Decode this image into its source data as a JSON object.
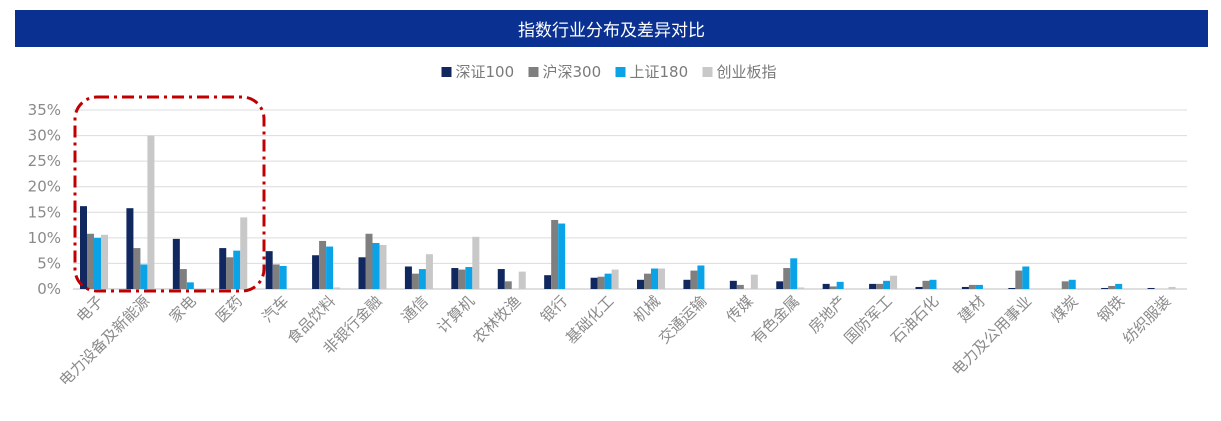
{
  "chart_data": {
    "type": "bar",
    "title": "指数行业分布及差异对比",
    "ylim": [
      0,
      35
    ],
    "yticks": [
      "0%",
      "5%",
      "10%",
      "15%",
      "20%",
      "25%",
      "30%",
      "35%"
    ],
    "legend_position": "top-center",
    "grid": true,
    "categories": [
      "电子",
      "电力设备及新能源",
      "家电",
      "医药",
      "汽车",
      "食品饮料",
      "非银行金融",
      "通信",
      "计算机",
      "农林牧渔",
      "银行",
      "基础化工",
      "机械",
      "交通运输",
      "传媒",
      "有色金属",
      "房地产",
      "国防军工",
      "石油石化",
      "建材",
      "电力及公用事业",
      "煤炭",
      "钢铁",
      "纺织服装"
    ],
    "series": [
      {
        "name": "深证100",
        "color": "#10285f",
        "values": [
          16.2,
          15.8,
          9.8,
          8.0,
          7.4,
          6.6,
          6.2,
          4.4,
          4.1,
          3.9,
          2.7,
          2.2,
          1.8,
          1.8,
          1.6,
          1.5,
          1.0,
          1.0,
          0.4,
          0.4,
          0.2,
          0.0,
          0.2,
          0.2
        ]
      },
      {
        "name": "沪深300",
        "color": "#7f7f7f",
        "values": [
          10.8,
          8.0,
          3.9,
          6.2,
          4.8,
          9.4,
          10.8,
          3.0,
          3.8,
          1.5,
          13.5,
          2.4,
          3.0,
          3.6,
          0.8,
          4.1,
          0.5,
          1.0,
          1.6,
          0.8,
          3.6,
          1.5,
          0.6,
          0.0
        ]
      },
      {
        "name": "上证180",
        "color": "#0aa3e8",
        "values": [
          10.0,
          4.8,
          1.3,
          7.5,
          4.5,
          8.3,
          9.0,
          3.9,
          4.3,
          0.0,
          12.8,
          3.0,
          4.0,
          4.6,
          0.0,
          6.0,
          1.4,
          1.6,
          1.8,
          0.8,
          4.4,
          1.8,
          1.0,
          0.0
        ]
      },
      {
        "name": "创业板指",
        "color": "#c8c8c8",
        "values": [
          10.6,
          30.0,
          0.0,
          14.0,
          0.0,
          0.3,
          8.6,
          6.8,
          10.2,
          3.4,
          0.0,
          3.8,
          4.0,
          0.0,
          2.8,
          0.3,
          0.0,
          2.6,
          0.0,
          0.0,
          0.0,
          0.0,
          0.0,
          0.4
        ]
      }
    ]
  }
}
